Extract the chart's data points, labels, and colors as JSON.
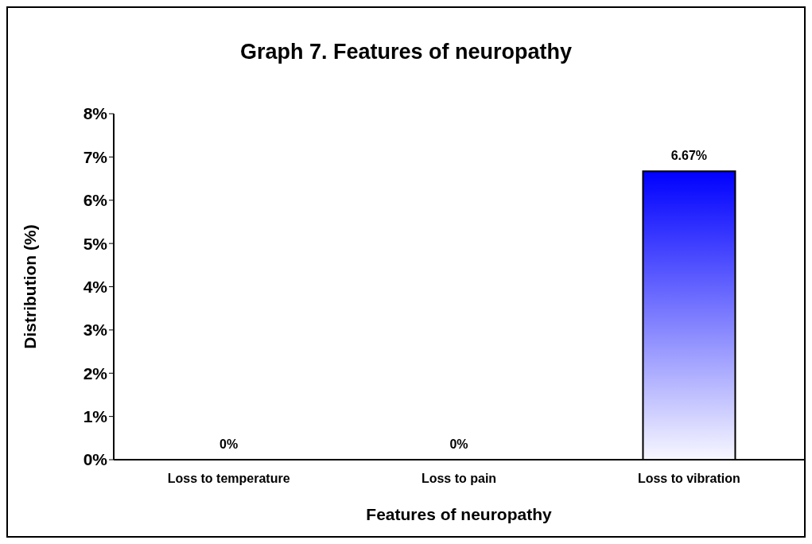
{
  "chart_data": {
    "type": "bar",
    "title": "Graph 7. Features of neuropathy",
    "xlabel": "Features of neuropathy",
    "ylabel": "Distribution (%)",
    "categories": [
      "Loss to temperature",
      "Loss to pain",
      "Loss to vibration"
    ],
    "values": [
      0,
      0,
      6.67
    ],
    "color": "#0000ff",
    "value_labels": [
      "0%",
      "0%",
      "6.67%"
    ],
    "ylim": [
      0,
      8
    ],
    "yticks": [
      {
        "value": 0,
        "label": "0%"
      },
      {
        "value": 1,
        "label": "1%"
      },
      {
        "value": 2,
        "label": "2%"
      },
      {
        "value": 3,
        "label": "3%"
      },
      {
        "value": 4,
        "label": "4%"
      },
      {
        "value": 5,
        "label": "5%"
      },
      {
        "value": 6,
        "label": "6%"
      },
      {
        "value": 7,
        "label": "7%"
      },
      {
        "value": 8,
        "label": "8%"
      }
    ],
    "grid": false,
    "legend": false
  }
}
